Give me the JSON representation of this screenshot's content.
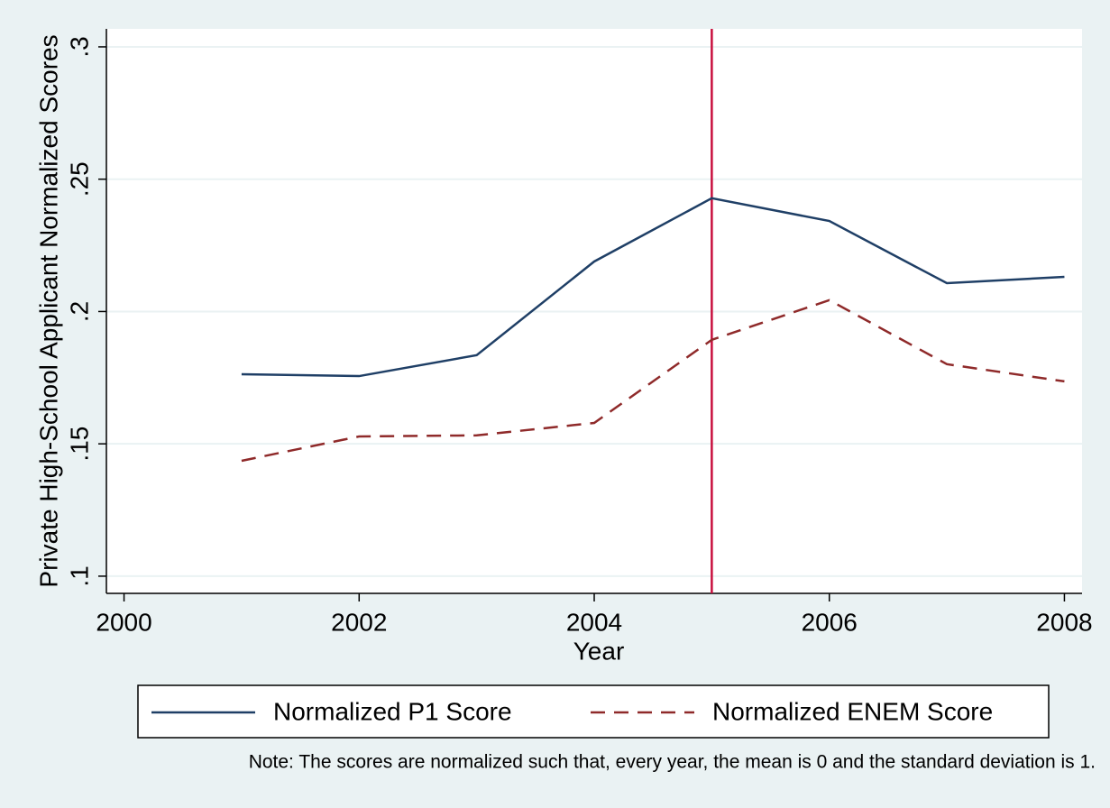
{
  "chart_data": {
    "type": "line",
    "x": [
      2001,
      2002,
      2003,
      2004,
      2005,
      2006,
      2007,
      2008
    ],
    "series": [
      {
        "name": "Normalized P1 Score",
        "color": "#1f3f66",
        "style": "solid",
        "values": [
          0.1763,
          0.1756,
          0.1835,
          0.2189,
          0.2428,
          0.2342,
          0.2107,
          0.2131
        ]
      },
      {
        "name": "Normalized ENEM Score",
        "color": "#8f2a2a",
        "style": "dashed",
        "values": [
          0.1436,
          0.1528,
          0.1532,
          0.1579,
          0.1893,
          0.2043,
          0.1801,
          0.1736
        ]
      }
    ],
    "xlim": [
      1999.85,
      2008.15
    ],
    "xticks": [
      2000,
      2002,
      2004,
      2006,
      2008
    ],
    "ylim": [
      0.0935,
      0.3068
    ],
    "yticks": [
      {
        "value": 0.1,
        "label": ".1"
      },
      {
        "value": 0.15,
        "label": ".15"
      },
      {
        "value": 0.2,
        "label": ".2"
      },
      {
        "value": 0.25,
        "label": ".25"
      },
      {
        "value": 0.3,
        "label": ".3"
      }
    ],
    "grid": true,
    "vline": {
      "value": 2005,
      "color": "#c8103e"
    },
    "xlabel": "Year",
    "ylabel": "Private High-School Applicant Normalized Scores",
    "note": "Note: The scores are normalized such that, every year, the mean is 0 and the standard deviation is 1."
  }
}
